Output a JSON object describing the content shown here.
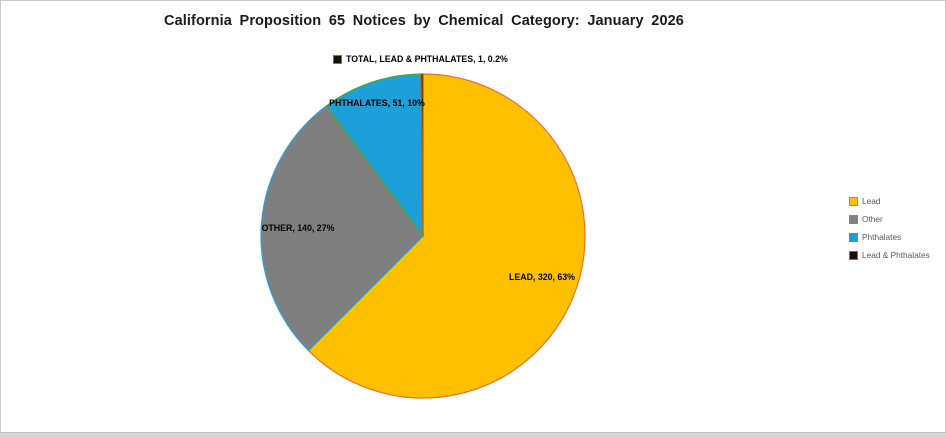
{
  "chart_data": {
    "type": "pie",
    "title": "California Proposition 65 Notices by Chemical Category: January 2026",
    "legend_position": "right",
    "start_angle_deg_from_top": 0,
    "direction": "clockwise",
    "slices": [
      {
        "name": "Lead",
        "value": 320,
        "pct_label": "63%",
        "data_label": "LEAD, 320, 63%",
        "fill": "#FFC000",
        "border": "#E97132"
      },
      {
        "name": "Other",
        "value": 140,
        "pct_label": "27%",
        "data_label": "OTHER, 140, 27%",
        "fill": "#7F7F7F",
        "border": "#2BA0DB"
      },
      {
        "name": "Phthalates",
        "value": 51,
        "pct_label": "10%",
        "data_label": "PHTHALATES, 51, 10%",
        "fill": "#1D9FD8",
        "border": "#4EA72E"
      },
      {
        "name": "Lead & Phthalates",
        "value": 1,
        "pct_label": "0.2%",
        "data_label": "TOTAL, LEAD & PHTHALATES, 1, 0.2%",
        "fill": "#191008",
        "border": "#C55A11"
      }
    ]
  },
  "colors": {
    "legend_text": "#595959",
    "title_text": "#1A1A1A",
    "frame_border": "#C9C9C9",
    "bottom_bar": "#D6D6D6",
    "background": "#FFFFFF"
  }
}
